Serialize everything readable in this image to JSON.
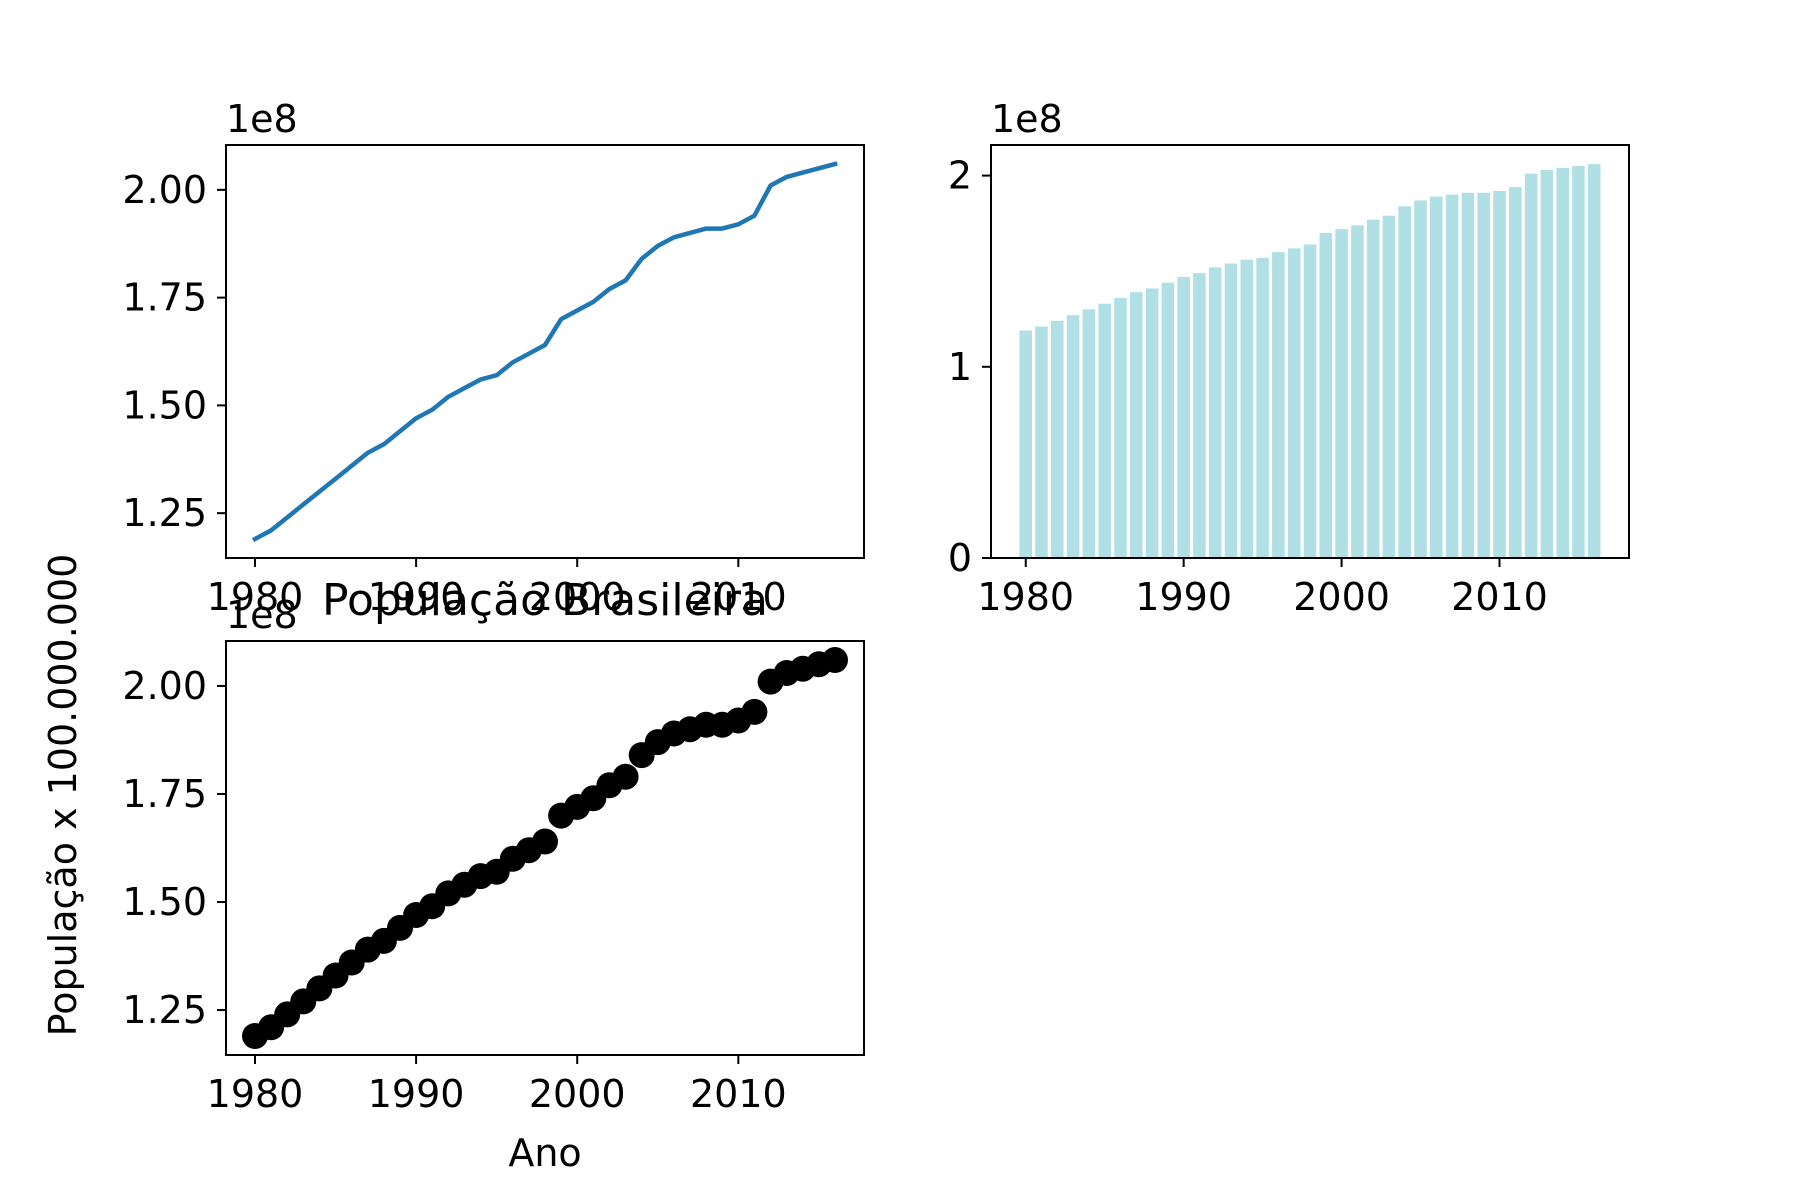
{
  "colors": {
    "line": "#1f77b4",
    "bar": "#b0e0e6",
    "scatter": "#000000",
    "axes": "#000000",
    "background": "#ffffff"
  },
  "chart_data": [
    {
      "type": "line",
      "title": "",
      "xlabel": "",
      "ylabel": "",
      "offset_text": "1e8",
      "xticks": [
        1980,
        1990,
        2000,
        2010
      ],
      "xtick_labels": [
        "1980",
        "1990",
        "2000",
        "2010"
      ],
      "yticks": [
        1.25,
        1.5,
        1.75,
        2.0
      ],
      "ytick_labels": [
        "1.25",
        "1.50",
        "1.75",
        "2.00"
      ],
      "xlim": [
        1978.2,
        2017.8
      ],
      "ylim": [
        1.146,
        2.104
      ],
      "grid": false,
      "series": [
        {
          "x": [
            1980,
            1981,
            1982,
            1983,
            1984,
            1985,
            1986,
            1987,
            1988,
            1989,
            1990,
            1991,
            1992,
            1993,
            1994,
            1995,
            1996,
            1997,
            1998,
            1999,
            2000,
            2001,
            2002,
            2003,
            2004,
            2005,
            2006,
            2007,
            2008,
            2009,
            2010,
            2011,
            2012,
            2013,
            2014,
            2015,
            2016
          ],
          "values": [
            1.19,
            1.21,
            1.24,
            1.27,
            1.3,
            1.33,
            1.36,
            1.39,
            1.41,
            1.44,
            1.47,
            1.49,
            1.52,
            1.54,
            1.56,
            1.57,
            1.6,
            1.62,
            1.64,
            1.7,
            1.72,
            1.74,
            1.77,
            1.79,
            1.84,
            1.87,
            1.89,
            1.9,
            1.91,
            1.91,
            1.92,
            1.94,
            2.01,
            2.03,
            2.04,
            2.05,
            2.06
          ]
        }
      ]
    },
    {
      "type": "bar",
      "title": "",
      "xlabel": "",
      "ylabel": "",
      "offset_text": "1e8",
      "xticks": [
        1980,
        1990,
        2000,
        2010
      ],
      "xtick_labels": [
        "1980",
        "1990",
        "2000",
        "2010"
      ],
      "yticks": [
        0,
        1,
        2
      ],
      "ytick_labels": [
        "0",
        "1",
        "2"
      ],
      "xlim": [
        1977.8,
        2018.2
      ],
      "ylim": [
        0,
        2.16
      ],
      "grid": false,
      "series": [
        {
          "x": [
            1980,
            1981,
            1982,
            1983,
            1984,
            1985,
            1986,
            1987,
            1988,
            1989,
            1990,
            1991,
            1992,
            1993,
            1994,
            1995,
            1996,
            1997,
            1998,
            1999,
            2000,
            2001,
            2002,
            2003,
            2004,
            2005,
            2006,
            2007,
            2008,
            2009,
            2010,
            2011,
            2012,
            2013,
            2014,
            2015,
            2016
          ],
          "values": [
            1.19,
            1.21,
            1.24,
            1.27,
            1.3,
            1.33,
            1.36,
            1.39,
            1.41,
            1.44,
            1.47,
            1.49,
            1.52,
            1.54,
            1.56,
            1.57,
            1.6,
            1.62,
            1.64,
            1.7,
            1.72,
            1.74,
            1.77,
            1.79,
            1.84,
            1.87,
            1.89,
            1.9,
            1.91,
            1.91,
            1.92,
            1.94,
            2.01,
            2.03,
            2.04,
            2.05,
            2.06
          ]
        }
      ]
    },
    {
      "type": "scatter",
      "title": "População Brasileira",
      "xlabel": "Ano",
      "ylabel": "População x 100.000.000",
      "offset_text": "1e8",
      "xticks": [
        1980,
        1990,
        2000,
        2010
      ],
      "xtick_labels": [
        "1980",
        "1990",
        "2000",
        "2010"
      ],
      "yticks": [
        1.25,
        1.5,
        1.75,
        2.0
      ],
      "ytick_labels": [
        "1.25",
        "1.50",
        "1.75",
        "2.00"
      ],
      "xlim": [
        1978.2,
        2017.8
      ],
      "ylim": [
        1.146,
        2.104
      ],
      "grid": false,
      "series": [
        {
          "x": [
            1980,
            1981,
            1982,
            1983,
            1984,
            1985,
            1986,
            1987,
            1988,
            1989,
            1990,
            1991,
            1992,
            1993,
            1994,
            1995,
            1996,
            1997,
            1998,
            1999,
            2000,
            2001,
            2002,
            2003,
            2004,
            2005,
            2006,
            2007,
            2008,
            2009,
            2010,
            2011,
            2012,
            2013,
            2014,
            2015,
            2016
          ],
          "values": [
            1.19,
            1.21,
            1.24,
            1.27,
            1.3,
            1.33,
            1.36,
            1.39,
            1.41,
            1.44,
            1.47,
            1.49,
            1.52,
            1.54,
            1.56,
            1.57,
            1.6,
            1.62,
            1.64,
            1.7,
            1.72,
            1.74,
            1.77,
            1.79,
            1.84,
            1.87,
            1.89,
            1.9,
            1.91,
            1.91,
            1.92,
            1.94,
            2.01,
            2.03,
            2.04,
            2.05,
            2.06
          ]
        }
      ]
    }
  ]
}
